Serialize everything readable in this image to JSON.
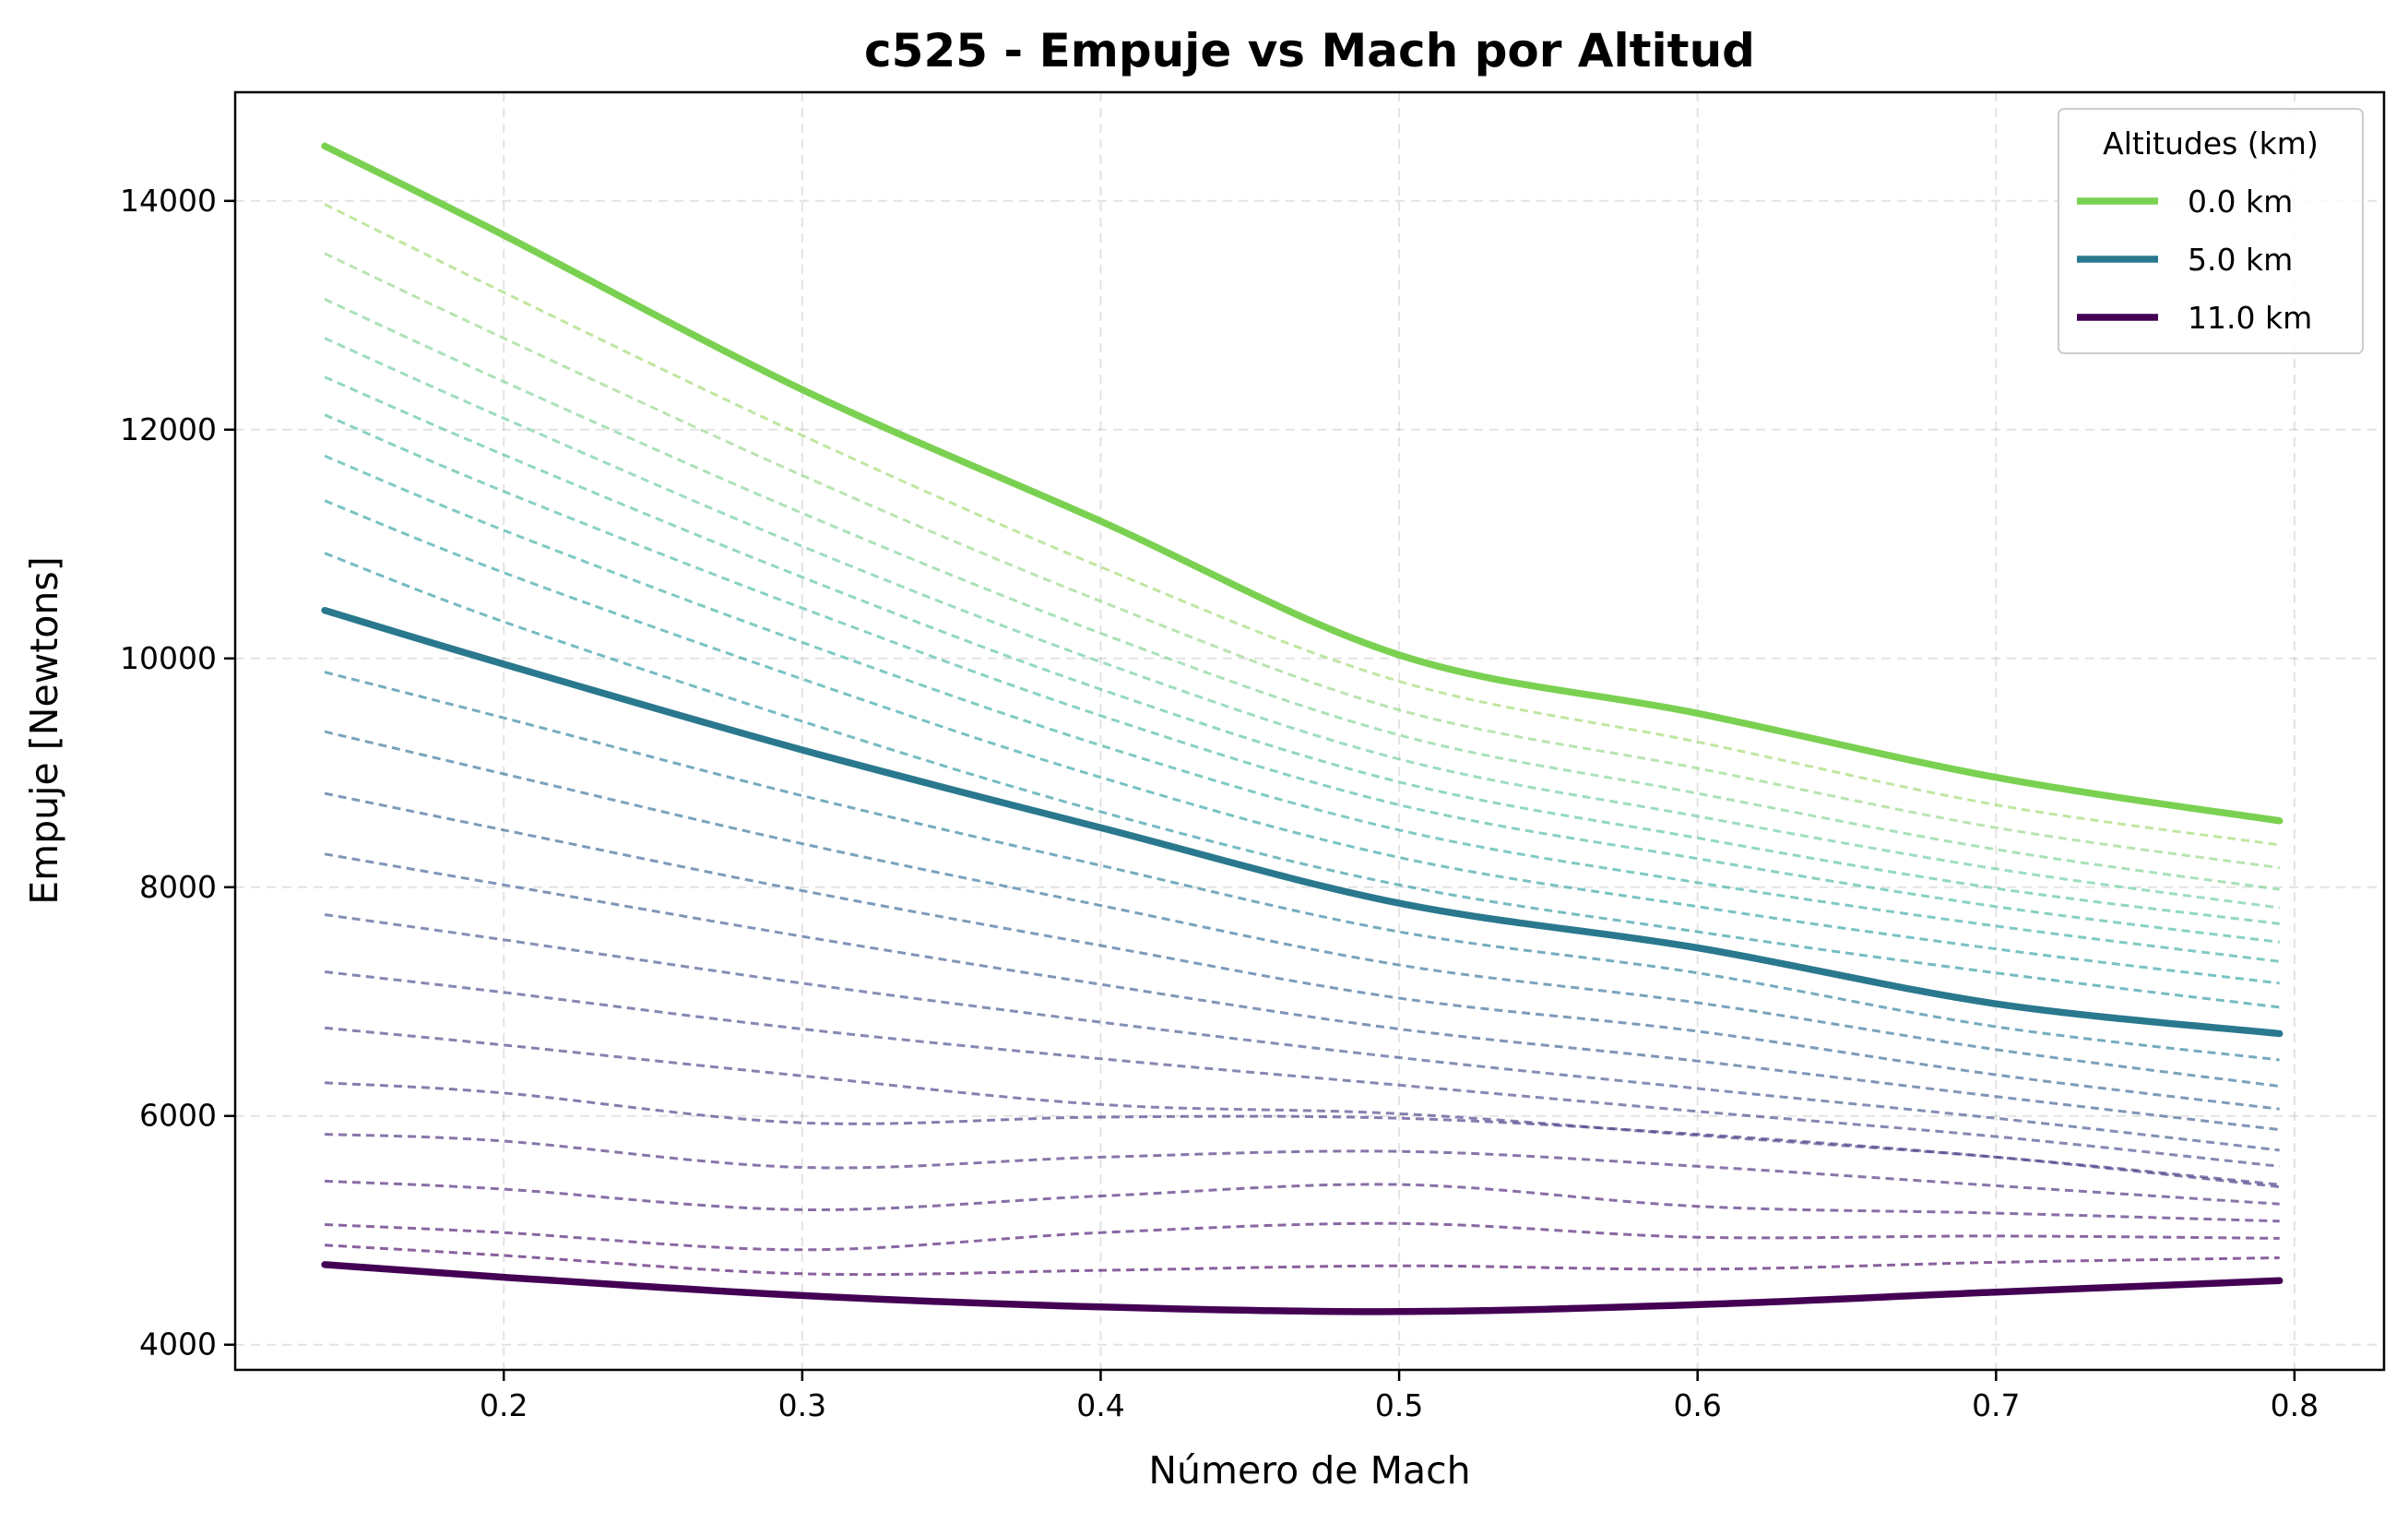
{
  "chart_data": {
    "type": "line",
    "title": "c525 - Empuje vs Mach por Altitud",
    "xlabel": "Número de Mach",
    "ylabel": "Empuje [Newtons]",
    "xlim": [
      0.11,
      0.83
    ],
    "ylim": [
      3780,
      14950
    ],
    "xticks": [
      0.2,
      0.3,
      0.4,
      0.5,
      0.6,
      0.7,
      0.8
    ],
    "xtick_labels": [
      "0.2",
      "0.3",
      "0.4",
      "0.5",
      "0.6",
      "0.7",
      "0.8"
    ],
    "yticks": [
      4000,
      6000,
      8000,
      10000,
      12000,
      14000
    ],
    "ytick_labels": [
      "4000",
      "6000",
      "8000",
      "10000",
      "12000",
      "14000"
    ],
    "grid": true,
    "legend": {
      "title": "Altitudes (km)",
      "placement": "top-right",
      "entries": [
        "0.0 km",
        "5.0 km",
        "11.0 km"
      ]
    },
    "series": [
      {
        "name": "0.0 km",
        "style": "solid",
        "color": "#7ad151",
        "x": [
          0.14,
          0.2,
          0.3,
          0.4,
          0.5,
          0.6,
          0.7,
          0.795
        ],
        "y": [
          14480,
          13700,
          12350,
          11200,
          10030,
          9520,
          8960,
          8580
        ]
      },
      {
        "style": "dashed",
        "color": "#a5db78",
        "x": [
          0.14,
          0.2,
          0.3,
          0.4,
          0.5,
          0.6,
          0.7,
          0.795
        ],
        "y": [
          13970,
          13200,
          11950,
          10800,
          9800,
          9270,
          8720,
          8370
        ]
      },
      {
        "style": "dashed",
        "color": "#9bd98f",
        "x": [
          0.14,
          0.2,
          0.3,
          0.4,
          0.5,
          0.6,
          0.7,
          0.795
        ],
        "y": [
          13540,
          12800,
          11600,
          10500,
          9550,
          9040,
          8520,
          8170
        ]
      },
      {
        "style": "dashed",
        "color": "#86d49a",
        "x": [
          0.14,
          0.2,
          0.3,
          0.4,
          0.5,
          0.6,
          0.7,
          0.795
        ],
        "y": [
          13140,
          12420,
          11270,
          10220,
          9330,
          8820,
          8330,
          7980
        ]
      },
      {
        "style": "dashed",
        "color": "#73cea4",
        "x": [
          0.14,
          0.2,
          0.3,
          0.4,
          0.5,
          0.6,
          0.7,
          0.795
        ],
        "y": [
          12800,
          12100,
          10980,
          9970,
          9120,
          8620,
          8160,
          7820
        ]
      },
      {
        "style": "dashed",
        "color": "#62c6a8",
        "x": [
          0.14,
          0.2,
          0.3,
          0.4,
          0.5,
          0.6,
          0.7,
          0.795
        ],
        "y": [
          12460,
          11780,
          10710,
          9730,
          8920,
          8430,
          7990,
          7680
        ]
      },
      {
        "style": "dashed",
        "color": "#55bdaa",
        "x": [
          0.14,
          0.2,
          0.3,
          0.4,
          0.5,
          0.6,
          0.7,
          0.795
        ],
        "y": [
          12130,
          11460,
          10440,
          9500,
          8720,
          8250,
          7830,
          7520
        ]
      },
      {
        "style": "dashed",
        "color": "#49b3aa",
        "x": [
          0.14,
          0.2,
          0.3,
          0.4,
          0.5,
          0.6,
          0.7,
          0.795
        ],
        "y": [
          11770,
          11120,
          10140,
          9240,
          8500,
          8040,
          7660,
          7350
        ]
      },
      {
        "style": "dashed",
        "color": "#40a8a8",
        "x": [
          0.14,
          0.2,
          0.3,
          0.4,
          0.5,
          0.6,
          0.7,
          0.795
        ],
        "y": [
          11380,
          10750,
          9820,
          8960,
          8260,
          7830,
          7460,
          7160
        ]
      },
      {
        "style": "dashed",
        "color": "#3a9ea6",
        "x": [
          0.14,
          0.2,
          0.3,
          0.4,
          0.5,
          0.6,
          0.7,
          0.795
        ],
        "y": [
          10920,
          10320,
          9450,
          8660,
          8020,
          7610,
          7250,
          6950
        ]
      },
      {
        "name": "5.0 km",
        "style": "solid",
        "color": "#2a788e",
        "x": [
          0.14,
          0.2,
          0.3,
          0.4,
          0.5,
          0.6,
          0.7,
          0.795
        ],
        "y": [
          10420,
          9950,
          9200,
          8520,
          7860,
          7470,
          6980,
          6720
        ]
      },
      {
        "style": "dashed",
        "color": "#3a87a3",
        "x": [
          0.14,
          0.2,
          0.3,
          0.4,
          0.5,
          0.6,
          0.7,
          0.795
        ],
        "y": [
          9880,
          9480,
          8800,
          8190,
          7610,
          7250,
          6780,
          6490
        ]
      },
      {
        "style": "dashed",
        "color": "#417b9f",
        "x": [
          0.14,
          0.2,
          0.3,
          0.4,
          0.5,
          0.6,
          0.7,
          0.795
        ],
        "y": [
          9360,
          8990,
          8380,
          7840,
          7320,
          6990,
          6580,
          6260
        ]
      },
      {
        "style": "dashed",
        "color": "#46719c",
        "x": [
          0.14,
          0.2,
          0.3,
          0.4,
          0.5,
          0.6,
          0.7,
          0.795
        ],
        "y": [
          8820,
          8500,
          7970,
          7490,
          7030,
          6740,
          6360,
          6060
        ]
      },
      {
        "style": "dashed",
        "color": "#4a6899",
        "x": [
          0.14,
          0.2,
          0.3,
          0.4,
          0.5,
          0.6,
          0.7,
          0.795
        ],
        "y": [
          8290,
          8020,
          7570,
          7150,
          6760,
          6480,
          6170,
          5880
        ]
      },
      {
        "style": "dashed",
        "color": "#4e5f96",
        "x": [
          0.14,
          0.2,
          0.3,
          0.4,
          0.5,
          0.6,
          0.7,
          0.795
        ],
        "y": [
          7760,
          7540,
          7160,
          6820,
          6510,
          6240,
          5980,
          5700
        ]
      },
      {
        "style": "dashed",
        "color": "#515692",
        "x": [
          0.14,
          0.2,
          0.3,
          0.4,
          0.5,
          0.6,
          0.7,
          0.795
        ],
        "y": [
          7260,
          7080,
          6760,
          6500,
          6270,
          6040,
          5820,
          5560
        ]
      },
      {
        "style": "dashed",
        "color": "#534d8e",
        "x": [
          0.14,
          0.2,
          0.3,
          0.4,
          0.5,
          0.6,
          0.7,
          0.795
        ],
        "y": [
          6770,
          6620,
          6350,
          6100,
          6020,
          5830,
          5640,
          5400
        ]
      },
      {
        "style": "dashed",
        "color": "#55438a",
        "x": [
          0.14,
          0.2,
          0.3,
          0.4,
          0.5,
          0.6,
          0.7,
          0.795
        ],
        "y": [
          6290,
          6200,
          5940,
          5990,
          5980,
          5840,
          5640,
          5380
        ]
      },
      {
        "style": "dashed",
        "color": "#563a85",
        "x": [
          0.14,
          0.2,
          0.3,
          0.4,
          0.5,
          0.6,
          0.7,
          0.795
        ],
        "y": [
          5840,
          5780,
          5550,
          5640,
          5690,
          5560,
          5390,
          5230
        ]
      },
      {
        "style": "dashed",
        "color": "#573180",
        "x": [
          0.14,
          0.2,
          0.3,
          0.4,
          0.5,
          0.6,
          0.7,
          0.795
        ],
        "y": [
          5430,
          5360,
          5180,
          5300,
          5400,
          5210,
          5150,
          5080
        ]
      },
      {
        "style": "dashed",
        "color": "#57277a",
        "x": [
          0.14,
          0.2,
          0.3,
          0.4,
          0.5,
          0.6,
          0.7,
          0.795
        ],
        "y": [
          5050,
          4980,
          4830,
          4980,
          5060,
          4940,
          4950,
          4930
        ]
      },
      {
        "style": "dashed",
        "color": "#571d73",
        "x": [
          0.14,
          0.2,
          0.3,
          0.4,
          0.5,
          0.6,
          0.7,
          0.795
        ],
        "y": [
          4870,
          4780,
          4620,
          4650,
          4690,
          4660,
          4720,
          4760
        ]
      },
      {
        "name": "11.0 km",
        "style": "solid",
        "color": "#440154",
        "x": [
          0.14,
          0.2,
          0.3,
          0.4,
          0.5,
          0.6,
          0.7,
          0.795
        ],
        "y": [
          4700,
          4590,
          4430,
          4330,
          4290,
          4350,
          4460,
          4560
        ]
      }
    ]
  }
}
